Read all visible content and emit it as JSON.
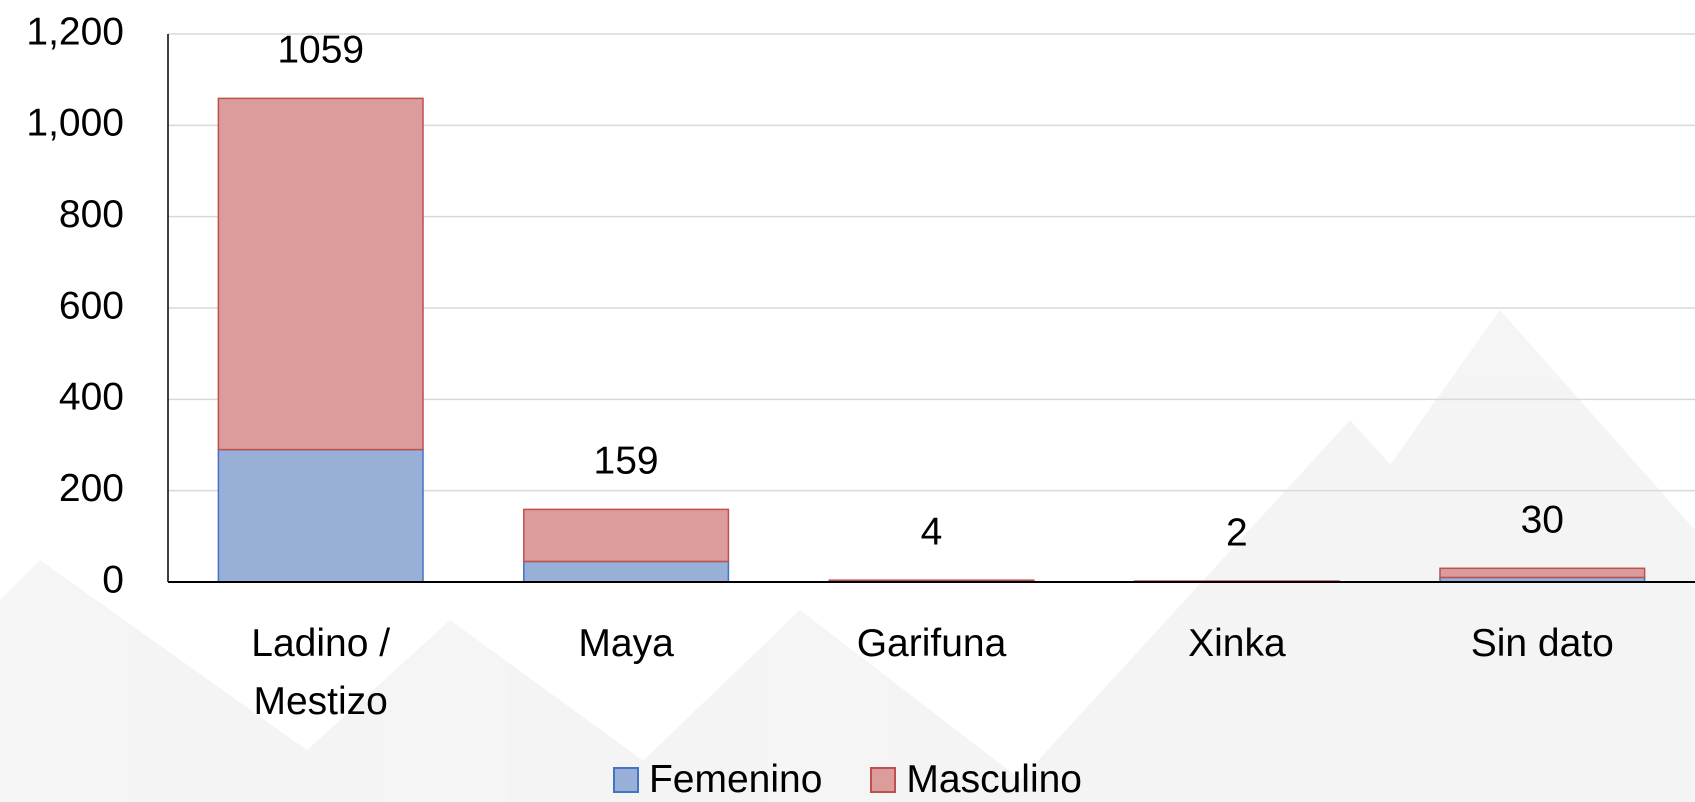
{
  "chart_data": {
    "type": "stacked_bar",
    "categories": [
      "Ladino / Mestizo",
      "Maya",
      "Garifuna",
      "Xinka",
      "Sin dato"
    ],
    "series": [
      {
        "name": "Femenino",
        "color": "#98b0d8",
        "edge_color": "#4472c4",
        "values": [
          290,
          45,
          1,
          1,
          10
        ]
      },
      {
        "name": "Masculino",
        "color": "#db9c9c",
        "edge_color": "#c0504d",
        "values": [
          769,
          114,
          3,
          1,
          20
        ]
      }
    ],
    "totals": [
      1059,
      159,
      4,
      2,
      30
    ],
    "ylim": [
      0,
      1200
    ],
    "yticks": [
      0,
      {
        "value": 200,
        "label": "200"
      },
      400,
      600,
      800,
      {
        "value": 1000,
        "label": "1,000"
      },
      {
        "value": 1200,
        "label": "1,200"
      }
    ],
    "grid": true,
    "legend": "bottom"
  }
}
